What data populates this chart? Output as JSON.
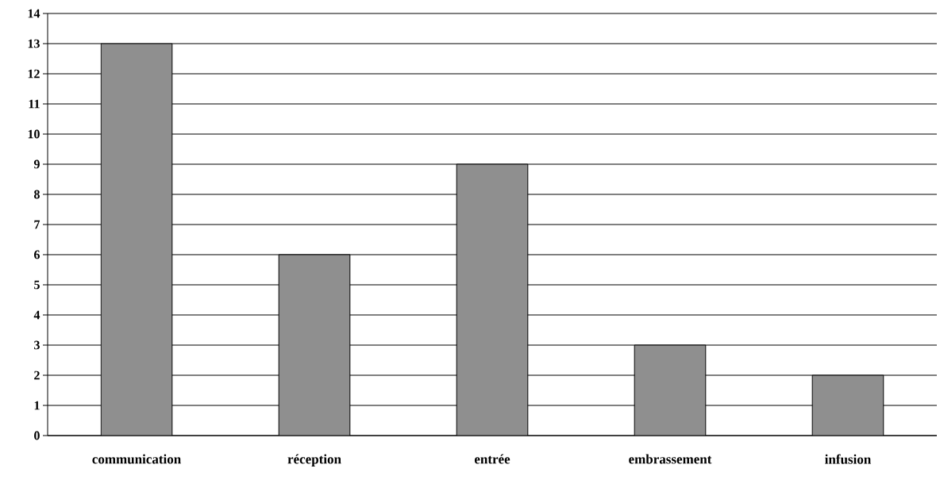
{
  "chart_data": {
    "type": "bar",
    "categories": [
      "communication",
      "réception",
      "entrée",
      "embrassement",
      "infusion"
    ],
    "values": [
      13,
      6,
      9,
      3,
      2
    ],
    "color": "#8f8f8f",
    "ylim": [
      0,
      14
    ],
    "yticks": [
      0,
      1,
      2,
      3,
      4,
      5,
      6,
      7,
      8,
      9,
      10,
      11,
      12,
      13,
      14
    ],
    "grid": "y"
  }
}
